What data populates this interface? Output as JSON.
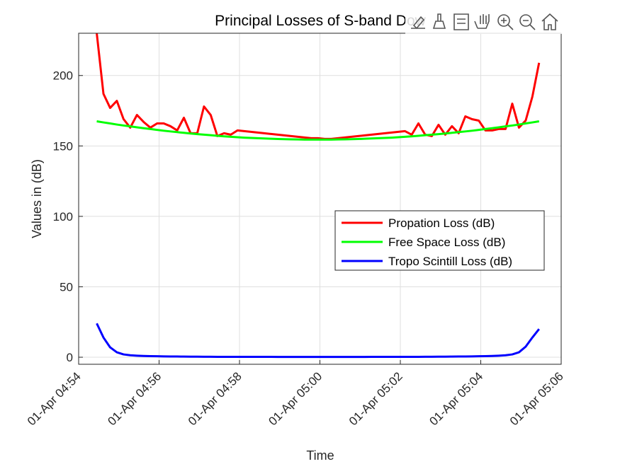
{
  "chart_data": {
    "type": "line",
    "title": "Principal Losses of S-band Dow",
    "xlabel": "Time",
    "ylabel": "Values in (dB)",
    "x": [
      "01-Apr 04:54:27",
      "01-Apr 04:54:37",
      "01-Apr 04:54:47",
      "01-Apr 04:54:57",
      "01-Apr 04:55:07",
      "01-Apr 04:55:17",
      "01-Apr 04:55:27",
      "01-Apr 04:55:37",
      "01-Apr 04:55:47",
      "01-Apr 04:55:57",
      "01-Apr 04:56:07",
      "01-Apr 04:56:17",
      "01-Apr 04:56:27",
      "01-Apr 04:56:37",
      "01-Apr 04:56:47",
      "01-Apr 04:56:57",
      "01-Apr 04:57:07",
      "01-Apr 04:57:17",
      "01-Apr 04:57:27",
      "01-Apr 04:57:37",
      "01-Apr 04:57:47",
      "01-Apr 04:57:57",
      "01-Apr 04:58:07",
      "01-Apr 04:58:17",
      "01-Apr 04:58:27",
      "01-Apr 04:58:37",
      "01-Apr 04:58:47",
      "01-Apr 04:58:57",
      "01-Apr 04:59:07",
      "01-Apr 04:59:17",
      "01-Apr 04:59:27",
      "01-Apr 04:59:37",
      "01-Apr 04:59:47",
      "01-Apr 04:59:57",
      "01-Apr 05:00:07",
      "01-Apr 05:00:17",
      "01-Apr 05:00:27",
      "01-Apr 05:00:37",
      "01-Apr 05:00:47",
      "01-Apr 05:00:57",
      "01-Apr 05:01:07",
      "01-Apr 05:01:17",
      "01-Apr 05:01:27",
      "01-Apr 05:01:37",
      "01-Apr 05:01:47",
      "01-Apr 05:01:57",
      "01-Apr 05:02:07",
      "01-Apr 05:02:17",
      "01-Apr 05:02:27",
      "01-Apr 05:02:37",
      "01-Apr 05:02:47",
      "01-Apr 05:02:57",
      "01-Apr 05:03:07",
      "01-Apr 05:03:17",
      "01-Apr 05:03:27",
      "01-Apr 05:03:37",
      "01-Apr 05:03:47",
      "01-Apr 05:03:57",
      "01-Apr 05:04:07",
      "01-Apr 05:04:17",
      "01-Apr 05:04:27",
      "01-Apr 05:04:37",
      "01-Apr 05:04:47",
      "01-Apr 05:04:57",
      "01-Apr 05:05:07",
      "01-Apr 05:05:17",
      "01-Apr 05:05:27"
    ],
    "series": [
      {
        "name": "Propation Loss (dB)",
        "color": "#ff0000",
        "values": [
          230,
          187,
          177,
          182,
          169,
          163,
          172,
          167,
          163,
          166,
          166,
          164,
          161,
          170,
          159,
          159,
          178,
          172,
          157,
          159,
          158,
          161,
          160.5,
          160,
          159.5,
          159,
          158.5,
          158,
          157.5,
          157,
          156.5,
          156,
          155.5,
          155.5,
          155,
          155,
          155.5,
          156,
          156.5,
          157,
          157.5,
          158,
          158.5,
          159,
          159.5,
          160,
          160.5,
          158,
          166,
          158,
          157,
          165,
          158,
          164,
          159,
          171,
          169,
          168,
          161,
          161,
          162,
          162,
          180,
          163,
          168,
          185,
          209
        ]
      },
      {
        "name": "Free Space Loss (dB)",
        "color": "#00ff00",
        "values": [
          167.5,
          166.7,
          166.0,
          165.2,
          164.5,
          163.9,
          163.2,
          162.6,
          162.0,
          161.4,
          160.8,
          160.3,
          159.8,
          159.3,
          158.8,
          158.4,
          158.0,
          157.6,
          157.2,
          156.8,
          156.5,
          156.2,
          155.9,
          155.7,
          155.5,
          155.3,
          155.1,
          154.9,
          154.8,
          154.7,
          154.6,
          154.5,
          154.5,
          154.5,
          154.5,
          154.5,
          154.6,
          154.7,
          154.8,
          154.9,
          155.1,
          155.3,
          155.5,
          155.7,
          155.9,
          156.2,
          156.5,
          156.8,
          157.2,
          157.6,
          158.0,
          158.4,
          158.8,
          159.3,
          159.8,
          160.3,
          160.8,
          161.4,
          162.0,
          162.6,
          163.2,
          163.9,
          164.5,
          165.2,
          166.0,
          166.7,
          167.5
        ]
      },
      {
        "name": "Tropo Scintill Loss (dB)",
        "color": "#0000ff",
        "values": [
          24,
          14,
          7,
          3.5,
          2,
          1.4,
          1.1,
          0.9,
          0.8,
          0.7,
          0.6,
          0.55,
          0.5,
          0.45,
          0.4,
          0.4,
          0.35,
          0.35,
          0.3,
          0.3,
          0.3,
          0.3,
          0.25,
          0.25,
          0.25,
          0.25,
          0.25,
          0.2,
          0.2,
          0.2,
          0.2,
          0.2,
          0.2,
          0.2,
          0.2,
          0.2,
          0.2,
          0.2,
          0.2,
          0.2,
          0.2,
          0.25,
          0.25,
          0.25,
          0.25,
          0.3,
          0.3,
          0.3,
          0.3,
          0.35,
          0.35,
          0.4,
          0.4,
          0.45,
          0.5,
          0.55,
          0.6,
          0.7,
          0.8,
          0.9,
          1.1,
          1.4,
          2,
          3.5,
          7.5,
          14,
          20
        ]
      }
    ],
    "xlim": [
      "01-Apr 04:54",
      "01-Apr 05:06"
    ],
    "xticks": [
      "01-Apr 04:54",
      "01-Apr 04:56",
      "01-Apr 04:58",
      "01-Apr 05:00",
      "01-Apr 05:02",
      "01-Apr 05:04",
      "01-Apr 05:06"
    ],
    "ylim": [
      -5,
      230
    ],
    "yticks": [
      0,
      50,
      100,
      150,
      200
    ],
    "grid": true
  }
}
